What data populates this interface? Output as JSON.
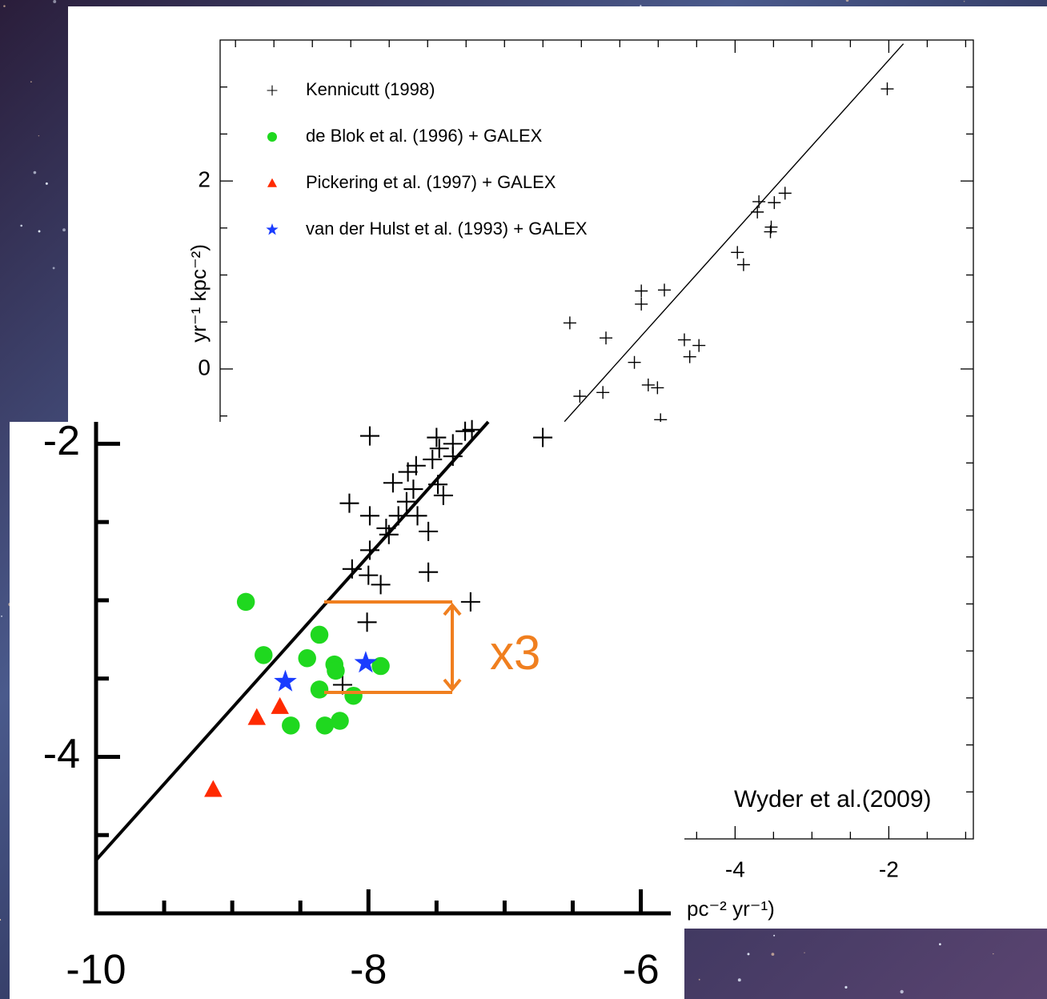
{
  "chart_data": [
    {
      "type": "scatter",
      "ylabel": "yr⁻¹ kpc⁻²)",
      "xlabel": "pc⁻² yr⁻¹)",
      "annotation": "Wyder et al.(2009)",
      "xlim": [
        -10.7,
        -0.9
      ],
      "ylim": [
        -5,
        3.5
      ],
      "xticks": [
        -4,
        -2
      ],
      "yticks": [
        0,
        2
      ],
      "minor_xticks": [
        -10.5,
        -10,
        -9.5,
        -9,
        -8.5,
        -8,
        -7.5,
        -7,
        -6.5,
        -6,
        -5.5,
        -5,
        -4.5,
        -3.5,
        -3,
        -2.5,
        -1.5,
        -1
      ],
      "minor_yticks": [
        -4.5,
        -4,
        -3.5,
        -3,
        -2.5,
        -2,
        -1.5,
        -1,
        -0.5,
        0.5,
        1,
        1.5,
        2.5,
        3
      ],
      "legend": "upper left",
      "series": [
        {
          "name": "Kennicutt (1998)",
          "color": "#000000",
          "marker": "plus",
          "x": [
            -2.02,
            -3.35,
            -3.49,
            -3.69,
            -3.71,
            -3.53,
            -3.54,
            -3.97,
            -3.89,
            -5.22,
            -5.22,
            -4.92,
            -6.15,
            -5.68,
            -4.66,
            -4.47,
            -4.59,
            -5.31,
            -6.02,
            -5.72,
            -5.13,
            -5.01,
            -4.97
          ],
          "y": [
            2.98,
            1.87,
            1.77,
            1.78,
            1.67,
            1.51,
            1.46,
            1.24,
            1.11,
            0.83,
            0.69,
            0.84,
            0.49,
            0.33,
            0.31,
            0.25,
            0.13,
            0.07,
            -0.29,
            -0.25,
            -0.17,
            -0.2,
            -0.54
          ]
        },
        {
          "name": "de Blok et al. (1996) + GALEX",
          "color": "#1fd81f",
          "marker": "circle",
          "x": [],
          "y": []
        },
        {
          "name": "Pickering et al. (1997) + GALEX",
          "color": "#ff2a00",
          "marker": "triangle",
          "x": [],
          "y": []
        },
        {
          "name": "van der Hulst et al. (1993) + GALEX",
          "color": "#1a3cff",
          "marker": "star",
          "x": [],
          "y": []
        }
      ],
      "fit_line": {
        "x": [
          -6.22,
          -1.81
        ],
        "y": [
          -0.56,
          3.46
        ],
        "color": "#000000"
      }
    },
    {
      "type": "scatter",
      "annotation": "x3",
      "annotation_color": "#f07f1f",
      "xlim": [
        -10,
        -5.78
      ],
      "ylim": [
        -5,
        -1.86
      ],
      "xticks": [
        -10,
        -8,
        -6
      ],
      "yticks": [
        -2,
        -4
      ],
      "minor_xticks": [
        -9.5,
        -9,
        -8.5,
        -7.5,
        -7,
        -6.5
      ],
      "minor_yticks": [
        -2.5,
        -3,
        -3.5,
        -4.5
      ],
      "series": [
        {
          "color": "#000000",
          "marker": "plus",
          "x": [
            -7.99,
            -7.5,
            -7.29,
            -7.24,
            -6.72,
            -7.48,
            -7.38,
            -7.53,
            -7.38,
            -7.65,
            -7.71,
            -7.82,
            -7.49,
            -7.67,
            -7.45,
            -8.14,
            -7.72,
            -7.64,
            -7.99,
            -7.78,
            -7.87,
            -7.56,
            -7.85,
            -7.99,
            -8.12,
            -8.0,
            -7.91,
            -7.56,
            -7.25,
            -8.01,
            -8.19
          ],
          "y": [
            -1.95,
            -1.96,
            -1.92,
            -1.91,
            -1.96,
            -2.03,
            -2.0,
            -2.1,
            -2.08,
            -2.14,
            -2.18,
            -2.25,
            -2.26,
            -2.29,
            -2.33,
            -2.38,
            -2.37,
            -2.46,
            -2.46,
            -2.46,
            -2.54,
            -2.56,
            -2.58,
            -2.68,
            -2.8,
            -2.84,
            -2.9,
            -2.82,
            -3.01,
            -3.14,
            -3.54
          ]
        },
        {
          "color": "#1fd81f",
          "marker": "circle",
          "x": [
            -8.9,
            -8.77,
            -8.36,
            -8.45,
            -8.25,
            -8.24,
            -7.91,
            -8.36,
            -8.11,
            -8.57,
            -8.32,
            -8.21
          ],
          "y": [
            -3.01,
            -3.35,
            -3.22,
            -3.37,
            -3.41,
            -3.45,
            -3.42,
            -3.57,
            -3.61,
            -3.8,
            -3.8,
            -3.77
          ]
        },
        {
          "color": "#ff2a00",
          "marker": "triangle",
          "x": [
            -8.82,
            -8.65,
            -9.14
          ],
          "y": [
            -3.75,
            -3.68,
            -4.21
          ]
        },
        {
          "color": "#1a3cff",
          "marker": "star",
          "x": [
            -8.61,
            -8.02
          ],
          "y": [
            -3.52,
            -3.4
          ]
        }
      ],
      "fit_line": {
        "x": [
          -10,
          -7.12
        ],
        "y": [
          -4.66,
          -1.86
        ],
        "color": "#000000"
      }
    }
  ]
}
